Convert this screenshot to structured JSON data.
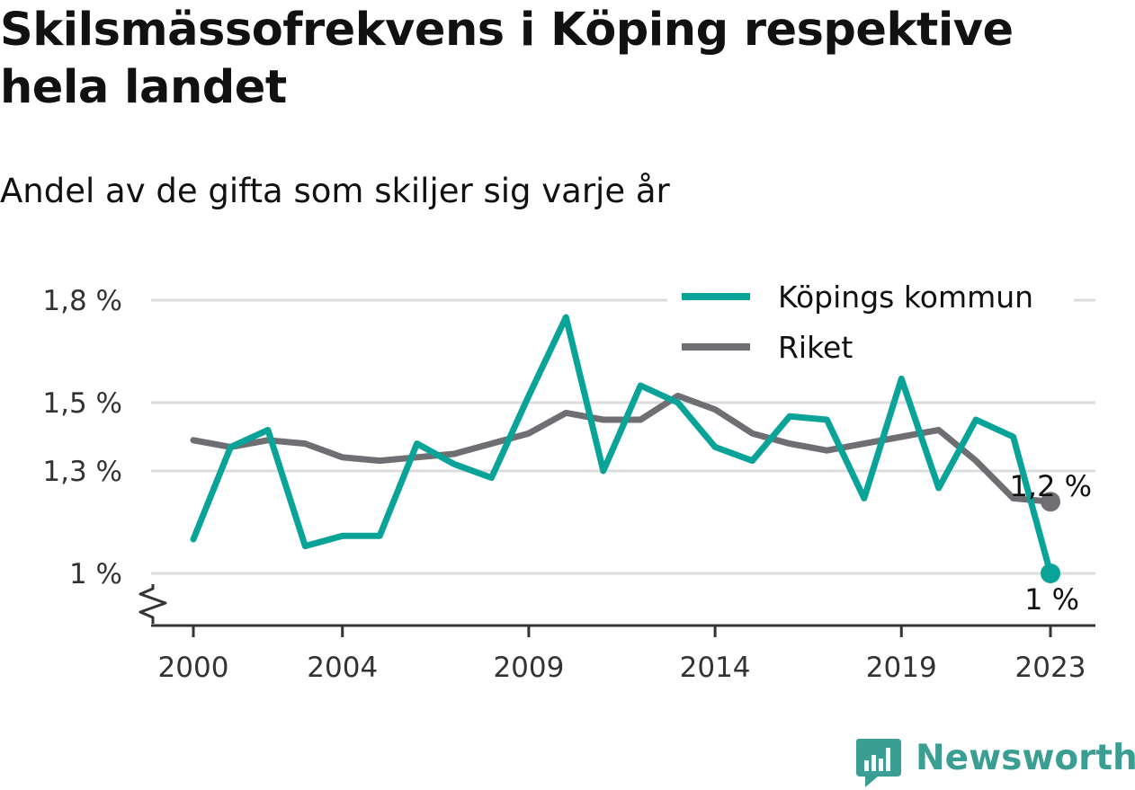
{
  "title": "Skilsmässofrekvens i Köping respektive hela landet",
  "subtitle": "Andel av de gifta som skiljer sig varje år",
  "brand": "Newsworthy",
  "colors": {
    "kommun": "#0aa398",
    "riket": "#6f6e73",
    "grid": "#dddddd",
    "axis": "#333333",
    "brand": "#3a9e93"
  },
  "chart_data": {
    "type": "line",
    "title": "Skilsmässofrekvens i Köping respektive hela landet",
    "subtitle": "Andel av de gifta som skiljer sig varje år",
    "xlabel": "",
    "ylabel": "",
    "x": [
      2000,
      2001,
      2002,
      2003,
      2004,
      2005,
      2006,
      2007,
      2008,
      2009,
      2010,
      2011,
      2012,
      2013,
      2014,
      2015,
      2016,
      2017,
      2018,
      2019,
      2020,
      2021,
      2022,
      2023
    ],
    "x_ticks": [
      2000,
      2004,
      2009,
      2014,
      2019,
      2023
    ],
    "x_tick_labels": [
      "2000",
      "2004",
      "2009",
      "2014",
      "2019",
      "2023"
    ],
    "y_ticks": [
      1.0,
      1.3,
      1.5,
      1.8
    ],
    "y_tick_labels": [
      "1 %",
      "1,3 %",
      "1,5 %",
      "1,8 %"
    ],
    "ylim": [
      0.88,
      1.84
    ],
    "axis_break": true,
    "grid": true,
    "legend_position": "top-right",
    "series": [
      {
        "name": "Köpings kommun",
        "color": "#0aa398",
        "values": [
          1.1,
          1.37,
          1.42,
          1.08,
          1.11,
          1.11,
          1.38,
          1.32,
          1.28,
          1.52,
          1.75,
          1.3,
          1.55,
          1.5,
          1.37,
          1.33,
          1.46,
          1.45,
          1.22,
          1.57,
          1.25,
          1.45,
          1.4,
          1.0
        ],
        "end_label": "1 %"
      },
      {
        "name": "Riket",
        "color": "#6f6e73",
        "values": [
          1.39,
          1.37,
          1.39,
          1.38,
          1.34,
          1.33,
          1.34,
          1.35,
          1.38,
          1.41,
          1.47,
          1.45,
          1.45,
          1.52,
          1.48,
          1.41,
          1.38,
          1.36,
          1.38,
          1.4,
          1.42,
          1.33,
          1.22,
          1.21
        ],
        "end_label": "1,2 %"
      }
    ]
  }
}
